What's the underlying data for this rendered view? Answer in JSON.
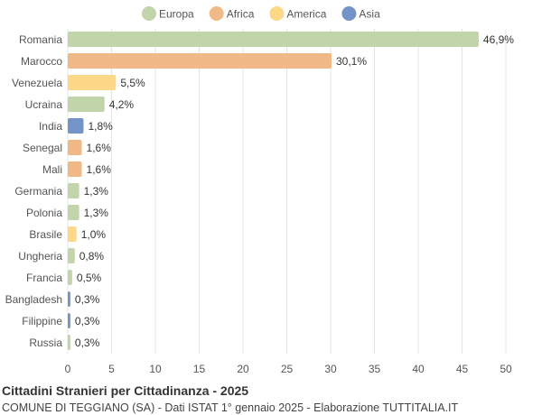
{
  "chart_data": {
    "type": "bar",
    "orientation": "horizontal",
    "title": "Cittadini Stranieri per Cittadinanza - 2025",
    "subtitle": "COMUNE DI TEGGIANO (SA) - Dati ISTAT 1° gennaio 2025 - Elaborazione TUTTITALIA.IT",
    "xlim": [
      0,
      50
    ],
    "xticks": [
      0,
      5,
      10,
      15,
      20,
      25,
      30,
      35,
      40,
      45,
      50
    ],
    "grid": true,
    "legend_position": "top",
    "legend": [
      {
        "name": "Europa",
        "color": "#c2d4aa"
      },
      {
        "name": "Africa",
        "color": "#f0b987"
      },
      {
        "name": "America",
        "color": "#fdd888"
      },
      {
        "name": "Asia",
        "color": "#7393c9"
      }
    ],
    "categories": [
      "Romania",
      "Marocco",
      "Venezuela",
      "Ucraina",
      "India",
      "Senegal",
      "Mali",
      "Germania",
      "Polonia",
      "Brasile",
      "Ungheria",
      "Francia",
      "Bangladesh",
      "Filippine",
      "Russia"
    ],
    "values": [
      46.9,
      30.1,
      5.5,
      4.2,
      1.8,
      1.6,
      1.6,
      1.3,
      1.3,
      1.0,
      0.8,
      0.5,
      0.3,
      0.3,
      0.3
    ],
    "labels": [
      "46,9%",
      "30,1%",
      "5,5%",
      "4,2%",
      "1,8%",
      "1,6%",
      "1,6%",
      "1,3%",
      "1,3%",
      "1,0%",
      "0,8%",
      "0,5%",
      "0,3%",
      "0,3%",
      "0,3%"
    ],
    "groups": [
      "Europa",
      "Africa",
      "America",
      "Europa",
      "Asia",
      "Africa",
      "Africa",
      "Europa",
      "Europa",
      "America",
      "Europa",
      "Europa",
      "Asia",
      "Asia",
      "Europa"
    ]
  }
}
